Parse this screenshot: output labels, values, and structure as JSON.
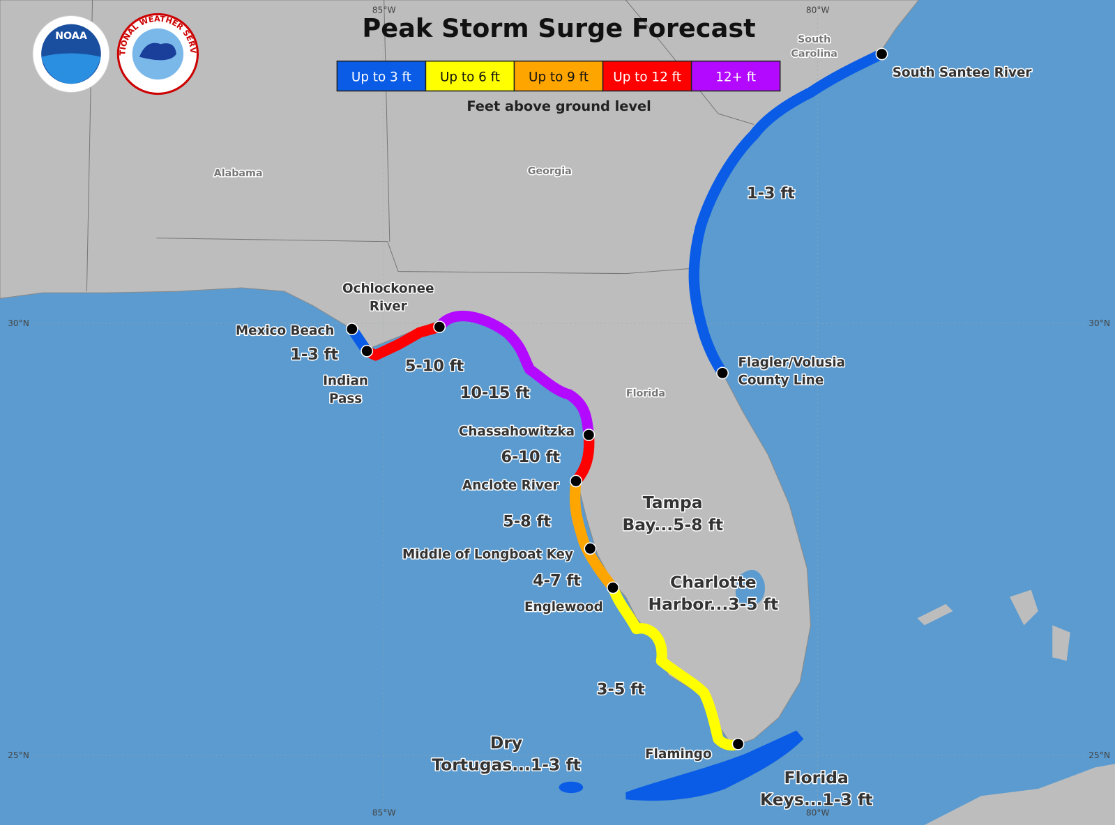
{
  "title": "Peak Storm Surge Forecast",
  "logos": {
    "noaa": "NOAA",
    "nws": "NATIONAL WEATHER SERVICE"
  },
  "legend": {
    "items": [
      {
        "label": "Up to 3 ft",
        "color": "#0a5ce6"
      },
      {
        "label": "Up to 6 ft",
        "color": "#ffff00"
      },
      {
        "label": "Up to 9 ft",
        "color": "#ffa500"
      },
      {
        "label": "Up to 12 ft",
        "color": "#ff0000"
      },
      {
        "label": "12+ ft",
        "color": "#b30aff"
      }
    ],
    "caption": "Feet above ground level"
  },
  "graticule": {
    "top": [
      "85°W",
      "80°W"
    ],
    "bottom": [
      "85°W",
      "80°W"
    ],
    "left": [
      "30°N",
      "25°N"
    ],
    "right": [
      "30°N",
      "25°N"
    ]
  },
  "regions": [
    [
      "South",
      "Carolina"
    ],
    [
      "Alabama"
    ],
    [
      "Georgia"
    ],
    [
      "Florida"
    ]
  ],
  "places": [
    [
      "South Santee River"
    ],
    [
      "Flagler/Volusia",
      "County Line"
    ],
    [
      "Ochlockonee",
      "River"
    ],
    [
      "Mexico Beach"
    ],
    [
      "Indian",
      "Pass"
    ],
    [
      "Chassahowitzka"
    ],
    [
      "Anclote River"
    ],
    [
      "Middle of Longboat Key"
    ],
    [
      "Englewood"
    ],
    [
      "Flamingo"
    ]
  ],
  "surge_labels": [
    [
      "1-3 ft"
    ],
    [
      "1-3 ft"
    ],
    [
      "5-10 ft"
    ],
    [
      "10-15 ft"
    ],
    [
      "6-10 ft"
    ],
    [
      "5-8 ft"
    ],
    [
      "Tampa",
      "Bay...5-8 ft"
    ],
    [
      "4-7 ft"
    ],
    [
      "Charlotte",
      "Harbor...3-5 ft"
    ],
    [
      "3-5 ft"
    ],
    [
      "Dry",
      "Tortugas...1-3 ft"
    ],
    [
      "Florida",
      "Keys...1-3 ft"
    ]
  ]
}
